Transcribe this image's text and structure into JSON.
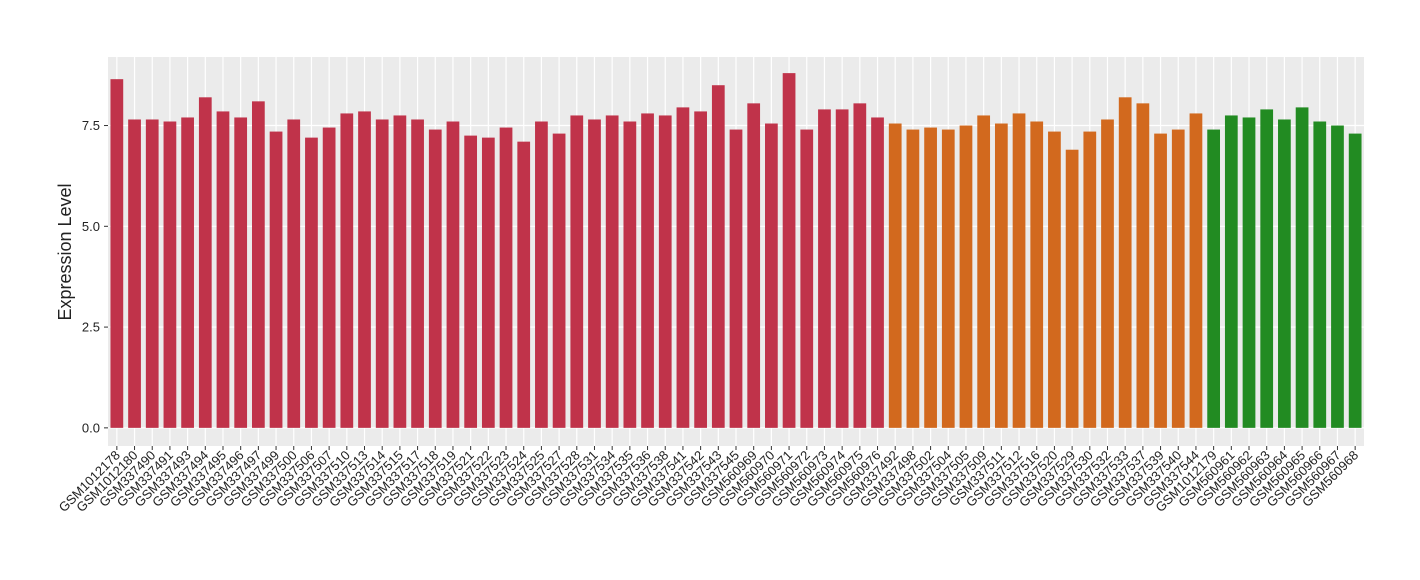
{
  "chart_data": {
    "type": "bar",
    "y_label": "Expression Level",
    "categories": [
      "GSM1012178",
      "GSM1012180",
      "GSM337490",
      "GSM337491",
      "GSM337493",
      "GSM337494",
      "GSM337495",
      "GSM337496",
      "GSM337497",
      "GSM337499",
      "GSM337500",
      "GSM337506",
      "GSM337507",
      "GSM337510",
      "GSM337513",
      "GSM337514",
      "GSM337515",
      "GSM337517",
      "GSM337518",
      "GSM337519",
      "GSM337521",
      "GSM337522",
      "GSM337523",
      "GSM337524",
      "GSM337525",
      "GSM337527",
      "GSM337528",
      "GSM337531",
      "GSM337534",
      "GSM337535",
      "GSM337536",
      "GSM337538",
      "GSM337541",
      "GSM337542",
      "GSM337543",
      "GSM337545",
      "GSM560969",
      "GSM560970",
      "GSM560971",
      "GSM560972",
      "GSM560973",
      "GSM560974",
      "GSM560975",
      "GSM560976",
      "GSM337492",
      "GSM337498",
      "GSM337502",
      "GSM337504",
      "GSM337505",
      "GSM337509",
      "GSM337511",
      "GSM337512",
      "GSM337516",
      "GSM337520",
      "GSM337529",
      "GSM337530",
      "GSM337532",
      "GSM337533",
      "GSM337537",
      "GSM337539",
      "GSM337540",
      "GSM337544",
      "GSM1012179",
      "GSM560961",
      "GSM560962",
      "GSM560963",
      "GSM560964",
      "GSM560965",
      "GSM560966",
      "GSM560967",
      "GSM560968"
    ],
    "values": [
      8.65,
      7.65,
      7.65,
      7.6,
      7.7,
      8.2,
      7.85,
      7.7,
      8.1,
      7.35,
      7.65,
      7.2,
      7.45,
      7.8,
      7.85,
      7.65,
      7.75,
      7.65,
      7.4,
      7.6,
      7.25,
      7.2,
      7.45,
      7.1,
      7.6,
      7.3,
      7.75,
      7.65,
      7.75,
      7.6,
      7.8,
      7.75,
      7.95,
      7.85,
      8.5,
      7.4,
      8.05,
      7.55,
      8.8,
      7.4,
      7.9,
      7.9,
      8.05,
      7.7,
      7.55,
      7.4,
      7.45,
      7.4,
      7.5,
      7.75,
      7.55,
      7.8,
      7.6,
      7.35,
      6.9,
      7.35,
      7.65,
      8.2,
      8.05,
      7.3,
      7.4,
      7.8,
      7.4,
      7.75,
      7.7,
      7.9,
      7.65,
      7.95,
      7.6,
      7.5,
      7.3
    ],
    "colors": [
      "#c0334a",
      "#c0334a",
      "#c0334a",
      "#c0334a",
      "#c0334a",
      "#c0334a",
      "#c0334a",
      "#c0334a",
      "#c0334a",
      "#c0334a",
      "#c0334a",
      "#c0334a",
      "#c0334a",
      "#c0334a",
      "#c0334a",
      "#c0334a",
      "#c0334a",
      "#c0334a",
      "#c0334a",
      "#c0334a",
      "#c0334a",
      "#c0334a",
      "#c0334a",
      "#c0334a",
      "#c0334a",
      "#c0334a",
      "#c0334a",
      "#c0334a",
      "#c0334a",
      "#c0334a",
      "#c0334a",
      "#c0334a",
      "#c0334a",
      "#c0334a",
      "#c0334a",
      "#c0334a",
      "#c0334a",
      "#c0334a",
      "#c0334a",
      "#c0334a",
      "#c0334a",
      "#c0334a",
      "#c0334a",
      "#c0334a",
      "#d2691e",
      "#d2691e",
      "#d2691e",
      "#d2691e",
      "#d2691e",
      "#d2691e",
      "#d2691e",
      "#d2691e",
      "#d2691e",
      "#d2691e",
      "#d2691e",
      "#d2691e",
      "#d2691e",
      "#d2691e",
      "#d2691e",
      "#d2691e",
      "#d2691e",
      "#d2691e",
      "#228b22",
      "#228b22",
      "#228b22",
      "#228b22",
      "#228b22",
      "#228b22",
      "#228b22",
      "#228b22",
      "#228b22"
    ],
    "ylim": [
      -0.45,
      9.2
    ],
    "yticks": [
      {
        "value": 0,
        "label": "0.0"
      },
      2.5,
      {
        "value": 5,
        "label": "5.0"
      },
      7.5
    ],
    "grid": true
  }
}
